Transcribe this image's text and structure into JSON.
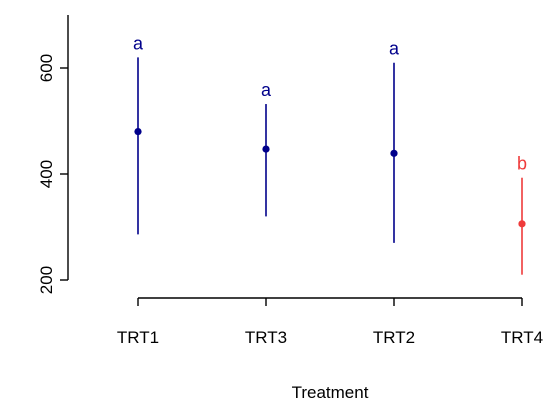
{
  "chart_data": {
    "type": "scatter",
    "title": "",
    "xlabel": "Treatment",
    "ylabel": "",
    "categories": [
      "TRT1",
      "TRT3",
      "TRT2",
      "TRT4"
    ],
    "yticks": [
      200,
      400,
      600
    ],
    "ylim": [
      200,
      700
    ],
    "grid": false,
    "series": [
      {
        "values": [
          480,
          447,
          439,
          306
        ],
        "lower": [
          286,
          320,
          270,
          210
        ],
        "upper": [
          620,
          532,
          610,
          393
        ],
        "group_letters": [
          "a",
          "a",
          "a",
          "b"
        ],
        "colors": [
          "#00008b",
          "#00008b",
          "#00008b",
          "#ef3b3b"
        ]
      }
    ]
  }
}
